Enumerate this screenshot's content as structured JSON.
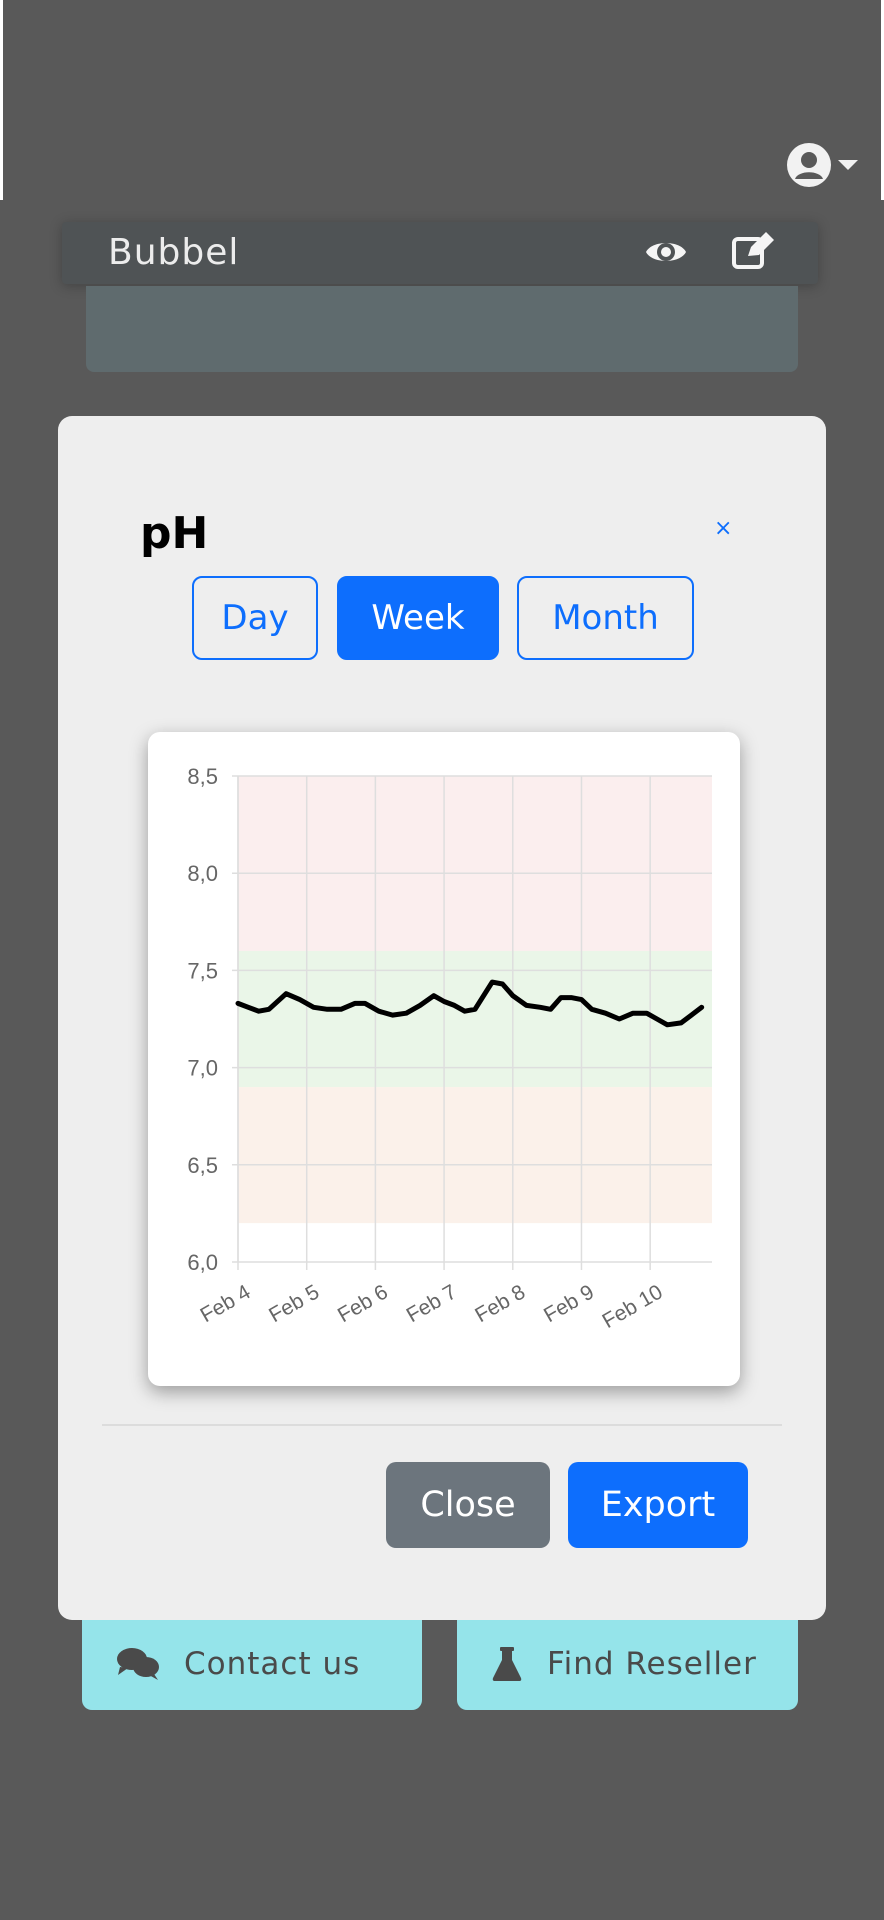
{
  "header": {
    "icons": {
      "user": "user-circle-icon",
      "caret": "caret-down-icon"
    }
  },
  "device": {
    "name": "Bubbel",
    "icons": {
      "view": "eye-icon",
      "edit": "edit-icon"
    }
  },
  "background_buttons": {
    "contact": {
      "label": "Contact us",
      "icon": "comments-icon"
    },
    "reseller": {
      "label": "Find Reseller",
      "icon": "flask-icon"
    }
  },
  "modal": {
    "title": "pH",
    "close_x": "×",
    "ranges": {
      "day": "Day",
      "week": "Week",
      "month": "Month",
      "active": "week"
    },
    "close_label": "Close",
    "export_label": "Export"
  },
  "colors": {
    "primary": "#0d6efd",
    "secondary": "#6c757d",
    "accent_teal": "#95e4ea",
    "band_high": "#fbeeee",
    "band_ok": "#eaf6e8",
    "band_low": "#fbf1ea"
  },
  "chart_data": {
    "type": "line",
    "ylim": [
      6.0,
      8.5
    ],
    "yticks": [
      "8,5",
      "8,0",
      "7,5",
      "7,0",
      "6,5",
      "6,0"
    ],
    "ytick_values": [
      8.5,
      8.0,
      7.5,
      7.0,
      6.5,
      6.0
    ],
    "xticks": [
      "Feb 4",
      "Feb 5",
      "Feb 6",
      "Feb 7",
      "Feb 8",
      "Feb 9",
      "Feb 10"
    ],
    "xlim": [
      0,
      6.9
    ],
    "bands": [
      {
        "from": 7.6,
        "to": 8.5,
        "color": "#fbeeee"
      },
      {
        "from": 6.9,
        "to": 7.6,
        "color": "#eaf6e8"
      },
      {
        "from": 6.2,
        "to": 6.9,
        "color": "#fbf1ea"
      }
    ],
    "grid": true,
    "series": [
      {
        "x": [
          0.0,
          0.15,
          0.3,
          0.45,
          0.7,
          0.9,
          1.1,
          1.3,
          1.5,
          1.7,
          1.85,
          2.05,
          2.25,
          2.45,
          2.65,
          2.85,
          3.0,
          3.15,
          3.3,
          3.45,
          3.7,
          3.85,
          4.0,
          4.2,
          4.4,
          4.55,
          4.7,
          4.85,
          5.0,
          5.15,
          5.35,
          5.55,
          5.75,
          5.95,
          6.1,
          6.25,
          6.45,
          6.6,
          6.75
        ],
        "values": [
          7.33,
          7.31,
          7.29,
          7.3,
          7.38,
          7.35,
          7.31,
          7.3,
          7.3,
          7.33,
          7.33,
          7.29,
          7.27,
          7.28,
          7.32,
          7.37,
          7.34,
          7.32,
          7.29,
          7.3,
          7.44,
          7.43,
          7.37,
          7.32,
          7.31,
          7.3,
          7.36,
          7.36,
          7.35,
          7.3,
          7.28,
          7.25,
          7.28,
          7.28,
          7.25,
          7.22,
          7.23,
          7.27,
          7.31
        ]
      }
    ]
  }
}
